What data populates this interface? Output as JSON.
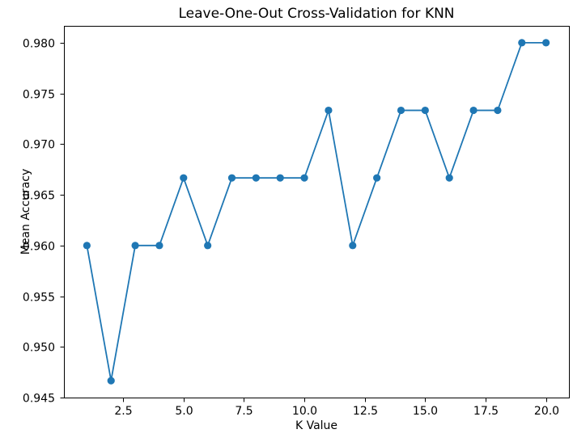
{
  "figure": {
    "background": "#ffffff"
  },
  "chart_data": {
    "type": "line",
    "title": "Leave-One-Out Cross-Validation for KNN",
    "xlabel": "K Value",
    "ylabel": "Mean Accuracy",
    "x": [
      1,
      2,
      3,
      4,
      5,
      6,
      7,
      8,
      9,
      10,
      11,
      12,
      13,
      14,
      15,
      16,
      17,
      18,
      19,
      20
    ],
    "y": [
      0.96,
      0.946667,
      0.96,
      0.96,
      0.966667,
      0.96,
      0.966667,
      0.966667,
      0.966667,
      0.966667,
      0.973333,
      0.96,
      0.966667,
      0.973333,
      0.973333,
      0.966667,
      0.973333,
      0.973333,
      0.98,
      0.98
    ],
    "series_name": "Mean Accuracy",
    "line_color": "#1f77b4",
    "marker": "o",
    "grid": false,
    "legend": "none",
    "xlim": [
      0.05,
      20.95
    ],
    "ylim": [
      0.945,
      0.981667
    ],
    "xticks": {
      "values": [
        2.5,
        5.0,
        7.5,
        10.0,
        12.5,
        15.0,
        17.5,
        20.0
      ],
      "labels": [
        "2.5",
        "5.0",
        "7.5",
        "10.0",
        "12.5",
        "15.0",
        "17.5",
        "20.0"
      ]
    },
    "yticks": {
      "values": [
        0.945,
        0.95,
        0.955,
        0.96,
        0.965,
        0.97,
        0.975,
        0.98
      ],
      "labels": [
        "0.945",
        "0.950",
        "0.955",
        "0.960",
        "0.965",
        "0.970",
        "0.975",
        "0.980"
      ]
    },
    "axis_color": "#000000"
  }
}
